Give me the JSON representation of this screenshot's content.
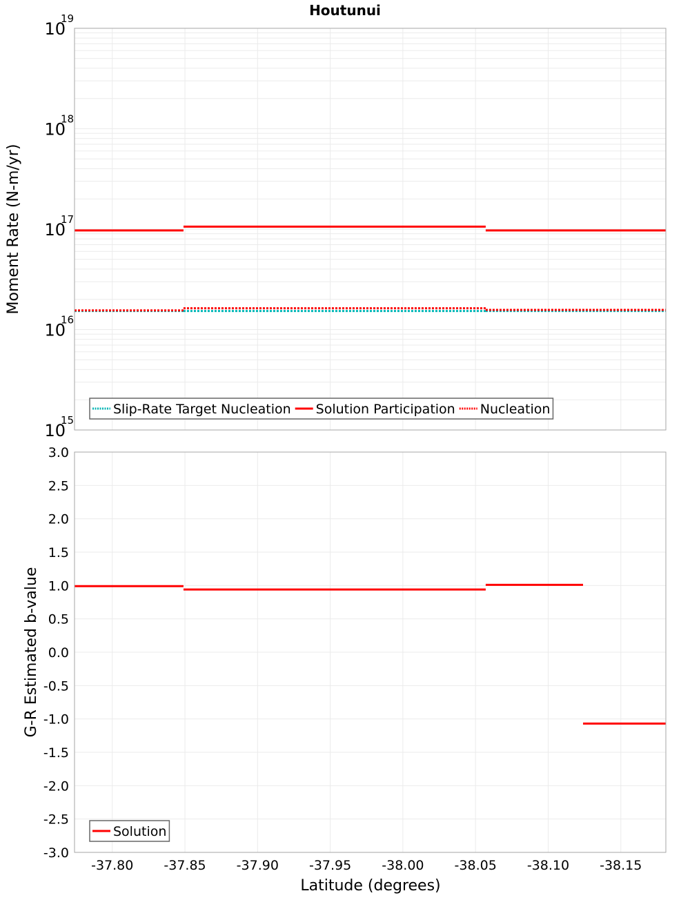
{
  "title": "Houtunui",
  "colors": {
    "solution": "#ff0000",
    "nucleation": "#ff0000",
    "target": "#00b4b4",
    "grid": "#ebebeb",
    "axis": "#a6a6a6",
    "legend_border": "#666666"
  },
  "chart_data": [
    {
      "type": "line",
      "panel": "top",
      "title": "Houtunui",
      "xlabel": "Latitude (degrees)",
      "ylabel": "Moment Rate (N-m/yr)",
      "yscale": "log",
      "ylim": [
        1000000000000000.0,
        1e+19
      ],
      "xlim": [
        -37.774,
        -38.181
      ],
      "x_reversed_display": true,
      "grid": true,
      "ytick_labels": [
        {
          "base": "10",
          "exp": "19",
          "value": 1e+19
        },
        {
          "base": "10",
          "exp": "18",
          "value": 1e+18
        },
        {
          "base": "10",
          "exp": "17",
          "value": 1e+17
        },
        {
          "base": "10",
          "exp": "16",
          "value": 1e+16
        },
        {
          "base": "10",
          "exp": "15",
          "value": 1000000000000000.0
        }
      ],
      "legend": {
        "position": "lower-left",
        "entries": [
          {
            "label": "Slip-Rate Target Nucleation",
            "style": "dotted",
            "color": "#00b4b4"
          },
          {
            "label": "Solution Participation",
            "style": "solid",
            "color": "#ff0000"
          },
          {
            "label": "Nucleation",
            "style": "dotted",
            "color": "#ff0000"
          }
        ]
      },
      "series": [
        {
          "name": "Slip-Rate Target Nucleation",
          "style": "dotted",
          "color": "#00b4b4",
          "segments": [
            {
              "x0": -37.774,
              "x1": -37.849,
              "y": 1.53e+16
            },
            {
              "x0": -37.849,
              "x1": -38.057,
              "y": 1.53e+16
            },
            {
              "x0": -38.057,
              "x1": -38.181,
              "y": 1.53e+16
            }
          ]
        },
        {
          "name": "Solution Participation",
          "style": "solid",
          "color": "#ff0000",
          "segments": [
            {
              "x0": -37.774,
              "x1": -37.849,
              "y": 9.7e+16
            },
            {
              "x0": -37.849,
              "x1": -38.057,
              "y": 1.06e+17
            },
            {
              "x0": -38.057,
              "x1": -38.181,
              "y": 9.7e+16
            }
          ]
        },
        {
          "name": "Nucleation",
          "style": "dotted",
          "color": "#ff0000",
          "segments": [
            {
              "x0": -37.774,
              "x1": -37.849,
              "y": 1.55e+16
            },
            {
              "x0": -37.849,
              "x1": -38.057,
              "y": 1.63e+16
            },
            {
              "x0": -38.057,
              "x1": -38.181,
              "y": 1.57e+16
            }
          ]
        }
      ]
    },
    {
      "type": "line",
      "panel": "bottom",
      "xlabel": "Latitude (degrees)",
      "ylabel": "G-R Estimated b-value",
      "ylim": [
        -3.0,
        3.0
      ],
      "xlim": [
        -37.774,
        -38.181
      ],
      "grid": true,
      "ytick_labels": [
        "3.0",
        "2.5",
        "2.0",
        "1.5",
        "1.0",
        "0.5",
        "0.0",
        "-0.5",
        "-1.0",
        "-1.5",
        "-2.0",
        "-2.5",
        "-3.0"
      ],
      "xtick_labels": [
        "-37.80",
        "-37.85",
        "-37.90",
        "-37.95",
        "-38.00",
        "-38.05",
        "-38.10",
        "-38.15"
      ],
      "legend": {
        "position": "lower-left",
        "entries": [
          {
            "label": "Solution",
            "style": "solid",
            "color": "#ff0000"
          }
        ]
      },
      "series": [
        {
          "name": "Solution",
          "style": "solid",
          "color": "#ff0000",
          "segments": [
            {
              "x0": -37.774,
              "x1": -37.849,
              "y": 0.99
            },
            {
              "x0": -37.849,
              "x1": -38.057,
              "y": 0.94
            },
            {
              "x0": -38.057,
              "x1": -38.124,
              "y": 1.01
            },
            {
              "x0": -38.124,
              "x1": -38.181,
              "y": -1.07
            }
          ]
        }
      ]
    }
  ]
}
